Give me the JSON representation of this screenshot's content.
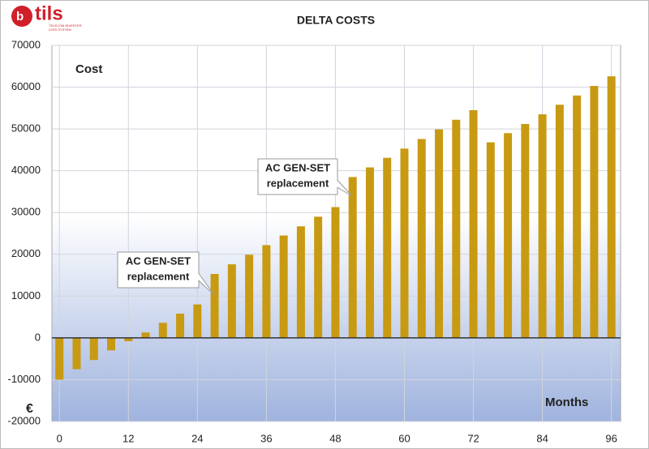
{
  "logo": {
    "name": "tils",
    "tagline": [
      "TELECOM INVERTER",
      "LESS SYSTEM"
    ]
  },
  "chart_data": {
    "type": "bar",
    "title": "DELTA COSTS",
    "y_label": "Cost",
    "x_label": "Months",
    "unit_label": "€",
    "x": [
      0,
      3,
      6,
      9,
      12,
      15,
      18,
      21,
      24,
      27,
      30,
      33,
      36,
      39,
      42,
      45,
      48,
      51,
      54,
      57,
      60,
      63,
      66,
      69,
      72,
      75,
      78,
      81,
      84,
      87,
      90,
      93,
      96
    ],
    "values": [
      -10000,
      -7500,
      -5300,
      -3000,
      -800,
      1300,
      3600,
      5800,
      8000,
      15300,
      17600,
      19900,
      22200,
      24500,
      26700,
      29000,
      31300,
      38500,
      40800,
      43100,
      45300,
      47600,
      49900,
      52200,
      54500,
      46800,
      49000,
      51200,
      53500,
      55800,
      58000,
      60300,
      62600
    ],
    "color": "#c89a12",
    "xlim": [
      -1.3,
      97.6
    ],
    "xticks": [
      0,
      12,
      24,
      36,
      48,
      60,
      72,
      84,
      96
    ],
    "ylim": [
      -20000,
      70000
    ],
    "yticks": [
      -20000,
      -10000,
      0,
      10000,
      20000,
      30000,
      40000,
      50000,
      60000,
      70000
    ],
    "grid": true,
    "annotations": [
      {
        "text": [
          "AC GEN-SET",
          "replacement"
        ]
      },
      {
        "text": [
          "AC GEN-SET",
          "replacement"
        ]
      }
    ]
  }
}
